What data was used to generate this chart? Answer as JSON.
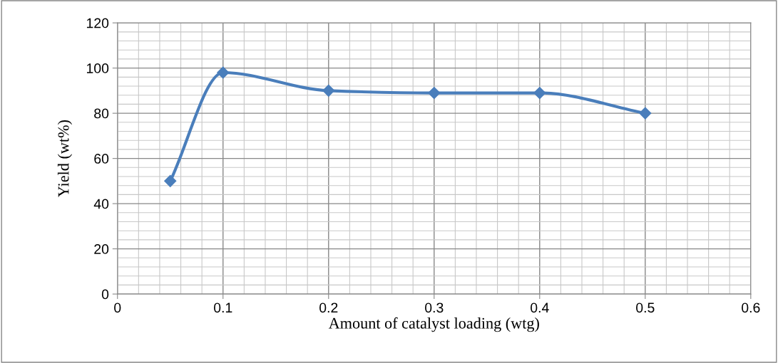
{
  "chart_data": {
    "type": "line",
    "xlabel": "Amount of catalyst loading (wtg)",
    "ylabel": "Yield (wt%)",
    "x": [
      0.05,
      0.1,
      0.2,
      0.3,
      0.4,
      0.5
    ],
    "series": [
      {
        "color": "#4a7ebb",
        "values": [
          50,
          98,
          90,
          89,
          89,
          80
        ]
      }
    ],
    "xlim": [
      0,
      0.6
    ],
    "xticks": [
      0,
      0.1,
      0.2,
      0.3,
      0.4,
      0.5,
      0.6
    ],
    "ylim": [
      0,
      120
    ],
    "yticks": [
      0,
      20,
      40,
      60,
      80,
      100,
      120
    ],
    "grid": true,
    "legend": false,
    "marker": "diamond",
    "line_style": "solid"
  }
}
